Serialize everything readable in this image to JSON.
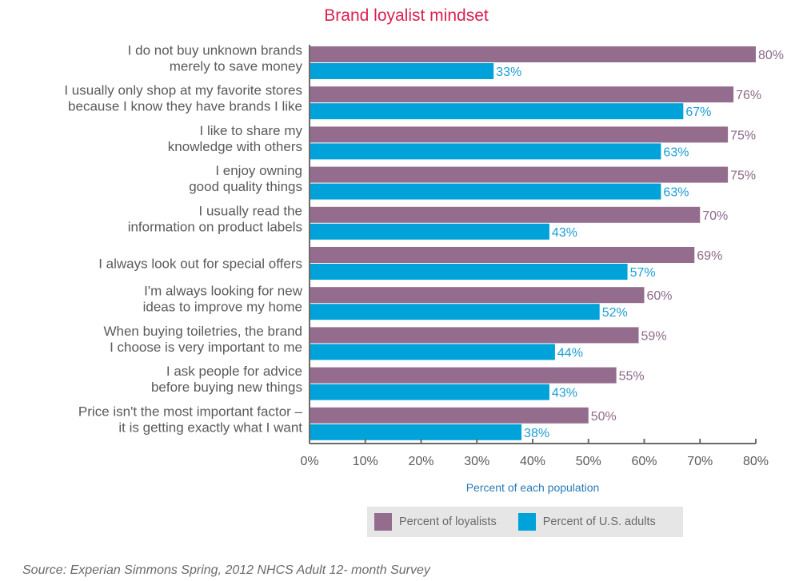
{
  "chart_data": {
    "type": "bar",
    "orientation": "horizontal",
    "title": "Brand loyalist mindset",
    "xlabel": "Percent of each population",
    "ylabel": "",
    "xlim": [
      0,
      80
    ],
    "xticks": [
      "0%",
      "10%",
      "20%",
      "30%",
      "40%",
      "50%",
      "60%",
      "70%",
      "80%"
    ],
    "categories": [
      [
        "I do not buy unknown brands",
        "merely to save money"
      ],
      [
        "I usually only shop at my favorite stores",
        "because I know they have brands I like"
      ],
      [
        "I like to share my",
        "knowledge with others"
      ],
      [
        "I enjoy owning",
        "good quality things"
      ],
      [
        "I usually read the",
        "information on product labels"
      ],
      [
        "I always look out for special offers"
      ],
      [
        "I'm always looking for new",
        "ideas to improve my home"
      ],
      [
        "When buying toiletries, the brand",
        "I choose is very important to me"
      ],
      [
        "I ask people for advice",
        "before buying new things"
      ],
      [
        "Price isn't the most important factor –",
        "it is getting exactly what I want"
      ]
    ],
    "series": [
      {
        "name": "Percent of loyalists",
        "color": "#946d8e",
        "label_color": "#8c6a87",
        "values": [
          80,
          76,
          75,
          75,
          70,
          69,
          60,
          59,
          55,
          50
        ]
      },
      {
        "name": "Percent of U.S. adults",
        "color": "#00a3d9",
        "label_color": "#1a9dd6",
        "values": [
          33,
          67,
          63,
          63,
          43,
          57,
          52,
          44,
          43,
          38
        ]
      }
    ],
    "legend": "bottom-center",
    "grid": false
  },
  "source": "Source: Experian Simmons Spring, 2012 NHCS Adult 12- month Survey"
}
